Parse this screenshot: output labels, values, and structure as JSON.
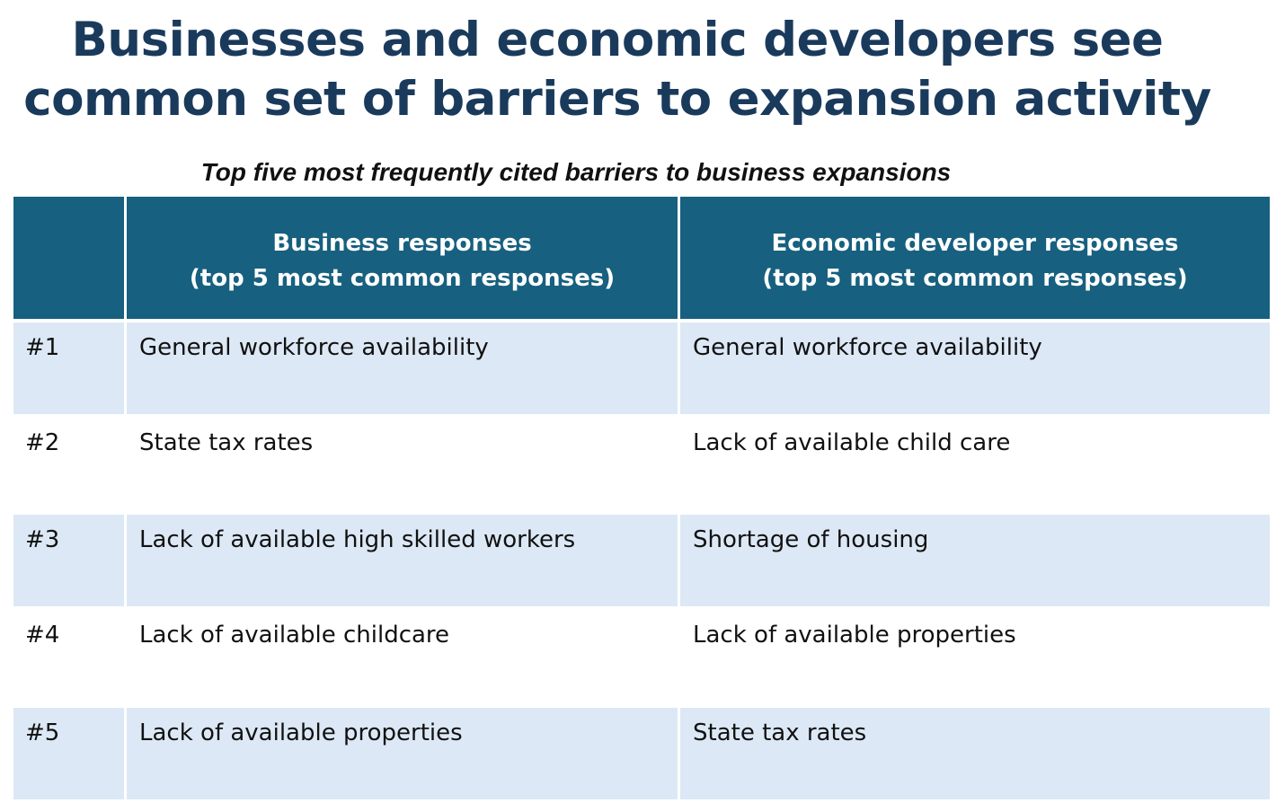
{
  "title": {
    "line1": "Businesses and economic developers see",
    "line2": "common set of barriers to expansion activity"
  },
  "subtitle": "Top five most frequently cited barriers to business expansions",
  "table": {
    "headers": {
      "rank": "",
      "business_line1": "Business responses",
      "business_line2": "(top 5 most common responses)",
      "developer_line1": "Economic developer responses",
      "developer_line2": "(top 5 most common responses)"
    },
    "rows": [
      {
        "rank": "#1",
        "business": "General workforce availability",
        "developer": "General workforce availability"
      },
      {
        "rank": "#2",
        "business": "State tax rates",
        "developer": "Lack of available child care"
      },
      {
        "rank": "#3",
        "business": "Lack of available high skilled workers",
        "developer": "Shortage of housing"
      },
      {
        "rank": "#4",
        "business": "Lack of available childcare",
        "developer": "Lack of available properties"
      },
      {
        "rank": "#5",
        "business": "Lack of available properties",
        "developer": "State tax rates"
      }
    ]
  },
  "colors": {
    "title": "#1a3a5c",
    "header_bg": "#17607f",
    "header_text": "#ffffff",
    "band_row": "#dce8f5",
    "plain_row": "#ffffff"
  }
}
